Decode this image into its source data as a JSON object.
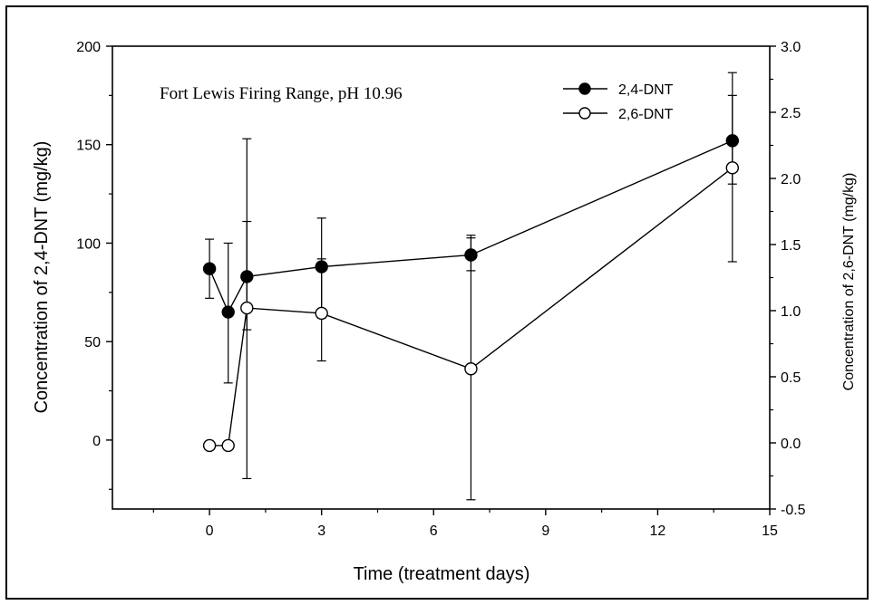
{
  "chart_data": {
    "type": "line",
    "annotation": "Fort Lewis Firing Range, pH 10.96",
    "xlabel": "Time (treatment days)",
    "ylabel": "Concentration of 2,4-DNT (mg/kg)",
    "y2label": "Concentration of 2,6-DNT (mg/kg)",
    "xlim": [
      -2.6,
      15
    ],
    "ylim": [
      -35,
      200
    ],
    "y2lim": [
      -0.5,
      3.0
    ],
    "xticks": [
      "0",
      "3",
      "6",
      "9",
      "12",
      "15"
    ],
    "yticks": [
      "0",
      "50",
      "100",
      "150",
      "200"
    ],
    "y2ticks": [
      "-0.5",
      "0.0",
      "0.5",
      "1.0",
      "1.5",
      "2.0",
      "2.5",
      "3.0"
    ],
    "grid": false,
    "legend_position": "top-right",
    "series": [
      {
        "name": "2,4-DNT",
        "axis": "left",
        "marker": "filled-circle",
        "x": [
          0,
          0.5,
          1,
          3,
          7,
          14
        ],
        "y": [
          87,
          65,
          83,
          88,
          94,
          152
        ],
        "err_low": [
          72,
          29,
          56,
          62,
          86,
          130
        ],
        "err_high": [
          102,
          100,
          111,
          92,
          104,
          175
        ]
      },
      {
        "name": "2,6-DNT",
        "axis": "right",
        "marker": "open-circle",
        "x": [
          0,
          0.5,
          1,
          3,
          7,
          14
        ],
        "y": [
          -0.02,
          -0.02,
          1.02,
          0.98,
          0.56,
          2.08
        ],
        "err_low": [
          null,
          null,
          -0.27,
          0.62,
          -0.43,
          1.37
        ],
        "err_high": [
          null,
          null,
          2.3,
          1.7,
          1.55,
          2.8
        ]
      }
    ]
  }
}
